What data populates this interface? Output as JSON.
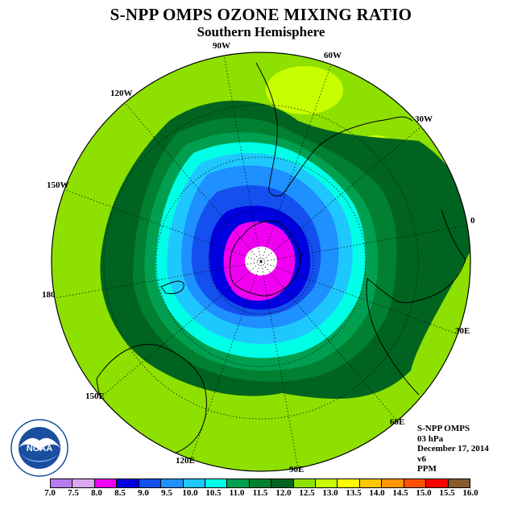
{
  "title": "S-NPP OMPS OZONE MIXING RATIO",
  "subtitle": "Southern Hemisphere",
  "longitude_labels": {
    "w90": "90W",
    "w60": "60W",
    "w30": "30W",
    "e0": "0",
    "e30": "30E",
    "e60": "60E",
    "e90": "90E",
    "e120": "120E",
    "e150": "150E",
    "lon180": "180",
    "w150": "150W",
    "w120": "120W"
  },
  "info": {
    "instrument": "S-NPP OMPS",
    "pressure": "03 hPa",
    "date": "December 17, 2014",
    "version": "v6",
    "units": "PPM"
  },
  "logo_text": "NOAA",
  "colorbar": {
    "labels": [
      "7.0",
      "7.5",
      "8.0",
      "8.5",
      "9.0",
      "9.5",
      "10.0",
      "10.5",
      "11.0",
      "11.5",
      "12.0",
      "12.5",
      "13.0",
      "13.5",
      "14.0",
      "14.5",
      "15.0",
      "15.5",
      "16.0"
    ],
    "colors": [
      "#b77cf0",
      "#d9a8f0",
      "#f000f0",
      "#0000e0",
      "#1450f0",
      "#1e90ff",
      "#1ec8ff",
      "#00ffe6",
      "#00a050",
      "#008030",
      "#006420",
      "#8ee000",
      "#c8ff00",
      "#ffff00",
      "#ffc800",
      "#ff9600",
      "#ff5000",
      "#ff0000",
      "#8b5a2b"
    ]
  }
}
